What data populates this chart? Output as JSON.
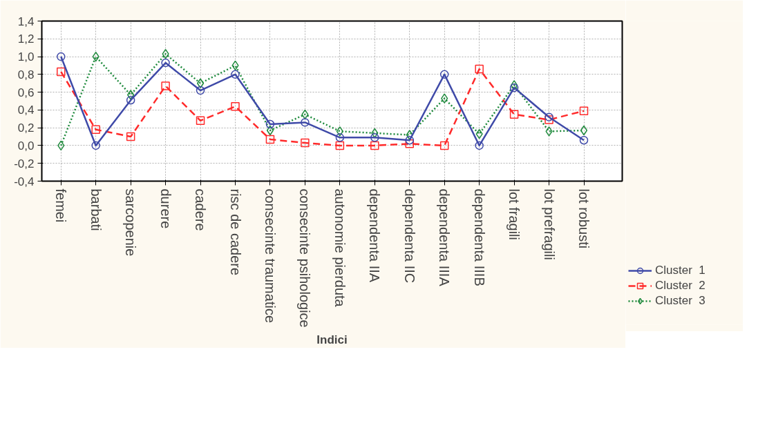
{
  "chart_data": {
    "type": "line",
    "xlabel": "Indici",
    "categories": [
      "femei",
      "barbati",
      "sarcopenie",
      "durere",
      "cadere",
      "risc de cadere",
      "consecinte traumatice",
      "consecinte psihologice",
      "autonomie pierduta",
      "dependenta IIA",
      "dependenta IIC",
      "dependenta IIIA",
      "dependenta IIIB",
      "lot fragili",
      "lot prefragili",
      "lot robusti"
    ],
    "series": [
      {
        "name": "Cluster  1",
        "color": "#3f4aa8",
        "marker": "circle",
        "line_style": "solid",
        "values": [
          1.0,
          0.0,
          0.51,
          0.93,
          0.62,
          0.8,
          0.24,
          0.26,
          0.09,
          0.09,
          0.06,
          0.8,
          0.0,
          0.65,
          0.32,
          0.06
        ]
      },
      {
        "name": "Cluster  2",
        "color": "#ff2a2a",
        "marker": "square",
        "line_style": "dashed",
        "values": [
          0.83,
          0.18,
          0.1,
          0.67,
          0.28,
          0.44,
          0.07,
          0.03,
          0.0,
          0.0,
          0.02,
          0.0,
          0.86,
          0.35,
          0.29,
          0.39
        ]
      },
      {
        "name": "Cluster  3",
        "color": "#1e8a3c",
        "marker": "diamond",
        "line_style": "dotted",
        "values": [
          0.0,
          1.0,
          0.57,
          1.03,
          0.7,
          0.9,
          0.17,
          0.35,
          0.16,
          0.14,
          0.12,
          0.53,
          0.13,
          0.68,
          0.16,
          0.17
        ]
      }
    ],
    "ylim": [
      -0.4,
      1.4
    ],
    "yticks": [
      {
        "value": -0.4,
        "label": "-0,4"
      },
      {
        "value": -0.2,
        "label": "-0,2"
      },
      {
        "value": 0,
        "label": "0,0"
      },
      {
        "value": 0.2,
        "label": "0,2"
      },
      {
        "value": 0.4,
        "label": "0,4"
      },
      {
        "value": 0.6,
        "label": "0,6"
      },
      {
        "value": 0.8,
        "label": "0,8"
      },
      {
        "value": 1.0,
        "label": "1,0"
      },
      {
        "value": 1.2,
        "label": "1,2"
      },
      {
        "value": 1.4,
        "label": "1,4"
      }
    ],
    "grid": true,
    "legend": "bottom right"
  }
}
